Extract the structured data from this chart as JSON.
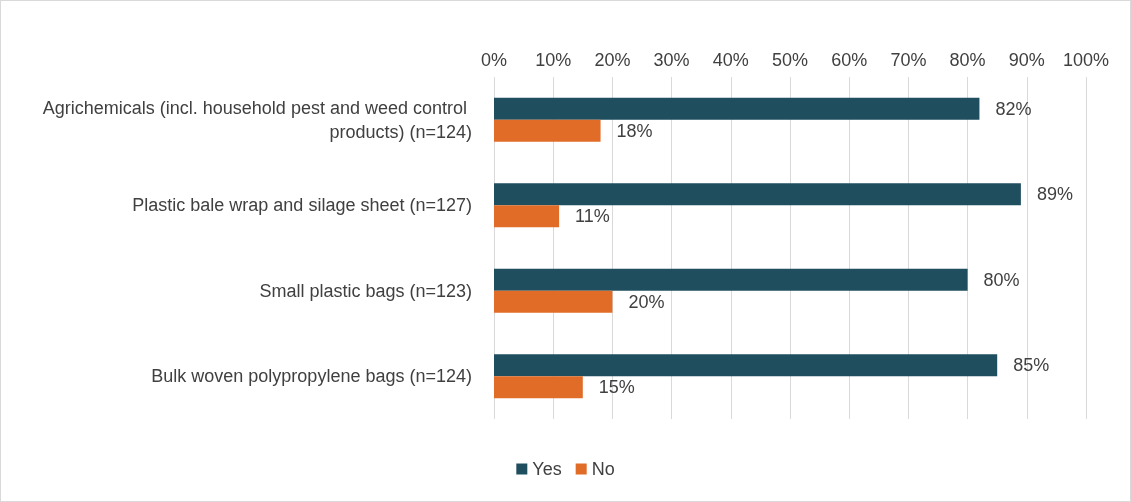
{
  "chart_data": {
    "type": "bar",
    "orientation": "horizontal",
    "categories": [
      "Agrichemicals (incl. household pest and weed control products) (n=124)",
      "Plastic bale wrap and silage sheet (n=127)",
      "Small plastic bags (n=123)",
      "Bulk woven polypropylene bags (n=124)"
    ],
    "series": [
      {
        "name": "Yes",
        "color": "#1f4e5f",
        "values": [
          82,
          89,
          80,
          85
        ],
        "value_labels": [
          "82%",
          "89%",
          "80%",
          "85%"
        ]
      },
      {
        "name": "No",
        "color": "#e06c28",
        "values": [
          18,
          11,
          20,
          15
        ],
        "value_labels": [
          "18%",
          "11%",
          "20%",
          "15%"
        ]
      }
    ],
    "xlim": [
      0,
      100
    ],
    "xticks": [
      {
        "value": 0,
        "label": "0%"
      },
      {
        "value": 10,
        "label": "10%"
      },
      {
        "value": 20,
        "label": "20%"
      },
      {
        "value": 30,
        "label": "30%"
      },
      {
        "value": 40,
        "label": "40%"
      },
      {
        "value": 50,
        "label": "50%"
      },
      {
        "value": 60,
        "label": "60%"
      },
      {
        "value": 70,
        "label": "70%"
      },
      {
        "value": 80,
        "label": "80%"
      },
      {
        "value": 90,
        "label": "90%"
      },
      {
        "value": 100,
        "label": "100%"
      }
    ],
    "grid": "x",
    "legend": "bottom"
  }
}
